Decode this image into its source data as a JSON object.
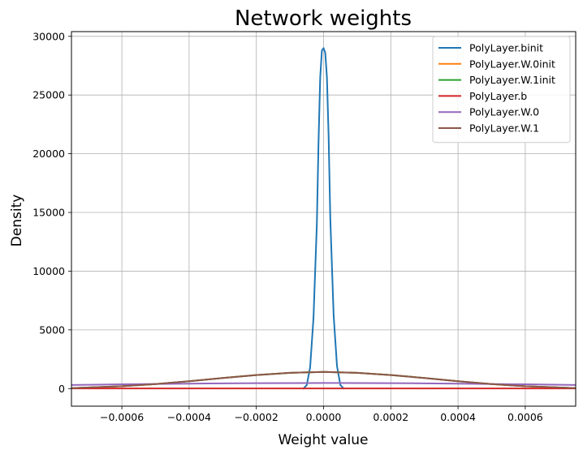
{
  "chart_data": {
    "type": "line",
    "title": "Network weights",
    "xlabel": "Weight value",
    "ylabel": "Density",
    "xlim": [
      -0.00075,
      0.00075
    ],
    "ylim": [
      -1500,
      30400
    ],
    "xticks": [
      -0.0006,
      -0.0004,
      -0.0002,
      0.0,
      0.0002,
      0.0004,
      0.0006
    ],
    "xtick_labels": [
      "−0.0006",
      "−0.0004",
      "−0.0002",
      "0.0000",
      "0.0002",
      "0.0004",
      "0.0006"
    ],
    "yticks": [
      0,
      5000,
      10000,
      15000,
      20000,
      25000,
      30000
    ],
    "ytick_labels": [
      "0",
      "5000",
      "10000",
      "15000",
      "20000",
      "25000",
      "30000"
    ],
    "grid": true,
    "legend_position": "top-right",
    "series": [
      {
        "name": "PolyLayer.binit",
        "color": "#1f77b4",
        "x": [
          -6e-05,
          -5e-05,
          -4e-05,
          -3e-05,
          -2e-05,
          -1.5e-05,
          -1e-05,
          -5e-06,
          0.0,
          5e-06,
          1e-05,
          1.5e-05,
          2e-05,
          3e-05,
          4e-05,
          5e-05,
          6e-05
        ],
        "y": [
          0,
          300,
          1800,
          6000,
          14000,
          21000,
          26500,
          28800,
          29000,
          28600,
          26500,
          21500,
          14500,
          6200,
          1900,
          300,
          0
        ]
      },
      {
        "name": "PolyLayer.W.0init",
        "color": "#ff7f0e",
        "x": [
          -0.00075,
          -0.0006,
          -0.0005,
          -0.0004,
          -0.0003,
          -0.0002,
          -0.0001,
          0.0,
          0.0001,
          0.0002,
          0.0003,
          0.0004,
          0.0005,
          0.0006,
          0.00075
        ],
        "y": [
          40,
          200,
          380,
          620,
          900,
          1150,
          1340,
          1420,
          1340,
          1150,
          900,
          620,
          380,
          200,
          40
        ]
      },
      {
        "name": "PolyLayer.W.1init",
        "color": "#2ca02c",
        "x": [
          -0.00075,
          -0.0006,
          -0.0005,
          -0.0004,
          -0.0003,
          -0.0002,
          -0.0001,
          0.0,
          0.0001,
          0.0002,
          0.0003,
          0.0004,
          0.0005,
          0.0006,
          0.00075
        ],
        "y": [
          40,
          200,
          380,
          620,
          900,
          1150,
          1340,
          1420,
          1340,
          1150,
          900,
          620,
          380,
          200,
          40
        ]
      },
      {
        "name": "PolyLayer.b",
        "color": "#d62728",
        "x": [
          -0.00075,
          0.00075
        ],
        "y": [
          10,
          10
        ]
      },
      {
        "name": "PolyLayer.W.0",
        "color": "#9467bd",
        "x": [
          -0.00075,
          -0.0006,
          -0.0004,
          -0.0002,
          0.0,
          0.0002,
          0.0004,
          0.0006,
          0.00075
        ],
        "y": [
          300,
          360,
          420,
          460,
          475,
          460,
          420,
          360,
          300
        ]
      },
      {
        "name": "PolyLayer.W.1",
        "color": "#8c564b",
        "x": [
          -0.00075,
          -0.0006,
          -0.0005,
          -0.0004,
          -0.0003,
          -0.0002,
          -0.0001,
          0.0,
          0.0001,
          0.0002,
          0.0003,
          0.0004,
          0.0005,
          0.0006,
          0.00075
        ],
        "y": [
          40,
          200,
          380,
          620,
          900,
          1150,
          1340,
          1420,
          1340,
          1150,
          900,
          620,
          380,
          200,
          40
        ]
      }
    ]
  }
}
